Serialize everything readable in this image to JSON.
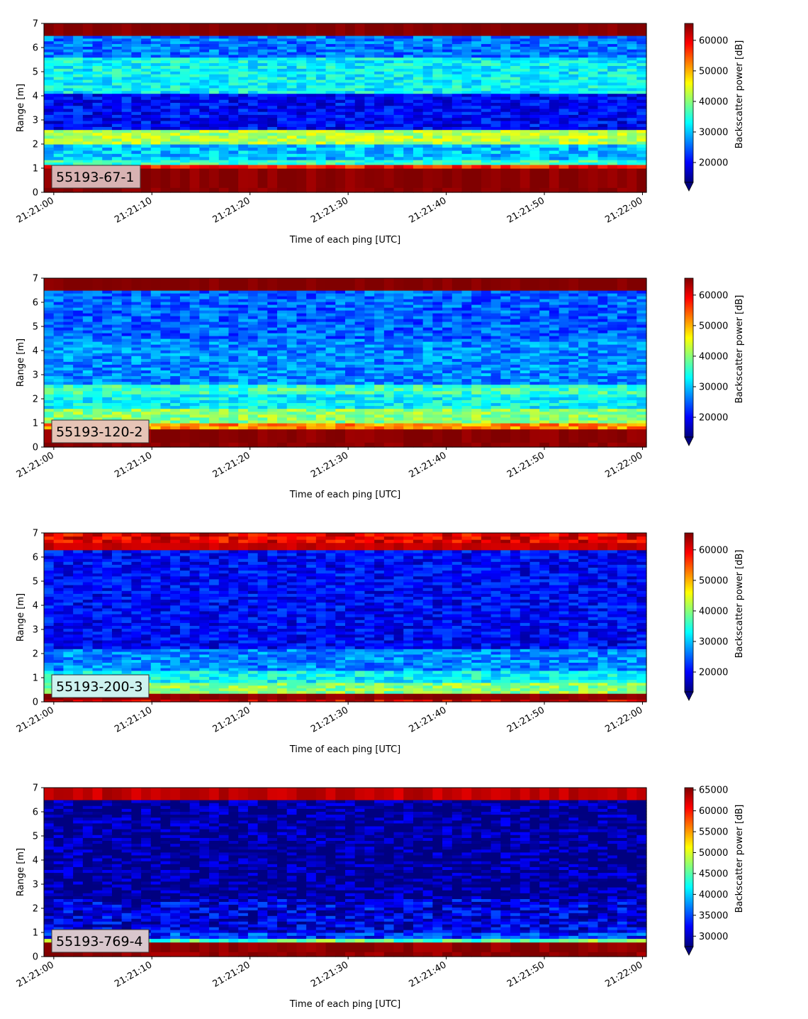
{
  "chart_data": [
    {
      "type": "heatmap",
      "label": "55193-67-1",
      "label_bg": "#d8b2b2",
      "xlabel": "Time of each ping [UTC]",
      "ylabel": "Range [m]",
      "colorbar_label": "Backscatter power [dB]",
      "xticks": [
        "21:21:00",
        "21:21:10",
        "21:21:20",
        "21:21:30",
        "21:21:40",
        "21:21:50",
        "21:22:00"
      ],
      "yticks": [
        "0",
        "1",
        "2",
        "3",
        "4",
        "5",
        "6",
        "7"
      ],
      "ylim": [
        0,
        7
      ],
      "xlim_seconds": [
        -1,
        60.4
      ],
      "clim": [
        13500,
        65535
      ],
      "cticks": [
        20000,
        30000,
        40000,
        50000,
        60000
      ],
      "colormap": "jet",
      "profile": [
        [
          0.0,
          0.2,
          65000
        ],
        [
          0.2,
          1.0,
          65000
        ],
        [
          1.0,
          1.15,
          58000
        ],
        [
          1.15,
          1.35,
          36000
        ],
        [
          1.35,
          2.0,
          30000
        ],
        [
          2.0,
          2.6,
          42000
        ],
        [
          2.6,
          4.1,
          20000
        ],
        [
          4.1,
          5.6,
          33000
        ],
        [
          5.6,
          6.5,
          26000
        ],
        [
          6.5,
          7.0,
          65535
        ]
      ]
    },
    {
      "type": "heatmap",
      "label": "55193-120-2",
      "label_bg": "#e6c4b6",
      "xlabel": "Time of each ping [UTC]",
      "ylabel": "Range [m]",
      "colorbar_label": "Backscatter power [dB]",
      "xticks": [
        "21:21:00",
        "21:21:10",
        "21:21:20",
        "21:21:30",
        "21:21:40",
        "21:21:50",
        "21:22:00"
      ],
      "yticks": [
        "0",
        "1",
        "2",
        "3",
        "4",
        "5",
        "6",
        "7"
      ],
      "ylim": [
        0,
        7
      ],
      "xlim_seconds": [
        -1,
        60.4
      ],
      "clim": [
        13500,
        65535
      ],
      "cticks": [
        20000,
        30000,
        40000,
        50000,
        60000
      ],
      "colormap": "jet",
      "profile": [
        [
          0.0,
          0.2,
          65000
        ],
        [
          0.2,
          0.75,
          65000
        ],
        [
          0.75,
          1.0,
          52000
        ],
        [
          1.0,
          1.6,
          40000
        ],
        [
          1.6,
          2.2,
          33000
        ],
        [
          2.2,
          2.6,
          36000
        ],
        [
          2.6,
          4.5,
          27000
        ],
        [
          4.5,
          6.5,
          25000
        ],
        [
          6.5,
          7.0,
          65535
        ]
      ]
    },
    {
      "type": "heatmap",
      "label": "55193-200-3",
      "label_bg": "#cdf2ef",
      "xlabel": "Time of each ping [UTC]",
      "ylabel": "Range [m]",
      "colorbar_label": "Backscatter power [dB]",
      "xticks": [
        "21:21:00",
        "21:21:10",
        "21:21:20",
        "21:21:30",
        "21:21:40",
        "21:21:50",
        "21:22:00"
      ],
      "yticks": [
        "0",
        "1",
        "2",
        "3",
        "4",
        "5",
        "6",
        "7"
      ],
      "ylim": [
        0,
        7
      ],
      "xlim_seconds": [
        -1,
        60.4
      ],
      "clim": [
        13500,
        65535
      ],
      "cticks": [
        20000,
        30000,
        40000,
        50000,
        60000
      ],
      "colormap": "jet",
      "profile": [
        [
          0.0,
          0.1,
          60000
        ],
        [
          0.1,
          0.35,
          65000
        ],
        [
          0.35,
          0.8,
          40000
        ],
        [
          0.8,
          1.3,
          33000
        ],
        [
          1.3,
          2.2,
          27000
        ],
        [
          2.2,
          6.3,
          20000
        ],
        [
          6.3,
          6.6,
          62000
        ],
        [
          6.6,
          7.0,
          60000
        ]
      ]
    },
    {
      "type": "heatmap",
      "label": "55193-769-4",
      "label_bg": "#d8c6cc",
      "xlabel": "Time of each ping [UTC]",
      "ylabel": "Range [m]",
      "colorbar_label": "Backscatter power [dB]",
      "xticks": [
        "21:21:00",
        "21:21:10",
        "21:21:20",
        "21:21:30",
        "21:21:40",
        "21:21:50",
        "21:22:00"
      ],
      "yticks": [
        "0",
        "1",
        "2",
        "3",
        "4",
        "5",
        "6",
        "7"
      ],
      "ylim": [
        0,
        7
      ],
      "xlim_seconds": [
        -1,
        60.4
      ],
      "clim": [
        27500,
        65535
      ],
      "cticks": [
        30000,
        35000,
        40000,
        45000,
        50000,
        55000,
        60000,
        65000
      ],
      "colormap": "jet",
      "profile": [
        [
          0.0,
          0.2,
          65000
        ],
        [
          0.2,
          0.6,
          65000
        ],
        [
          0.6,
          0.75,
          45000
        ],
        [
          0.75,
          1.0,
          34000
        ],
        [
          1.0,
          2.4,
          31000
        ],
        [
          2.4,
          6.5,
          28000
        ],
        [
          6.5,
          7.0,
          63000
        ]
      ]
    }
  ]
}
